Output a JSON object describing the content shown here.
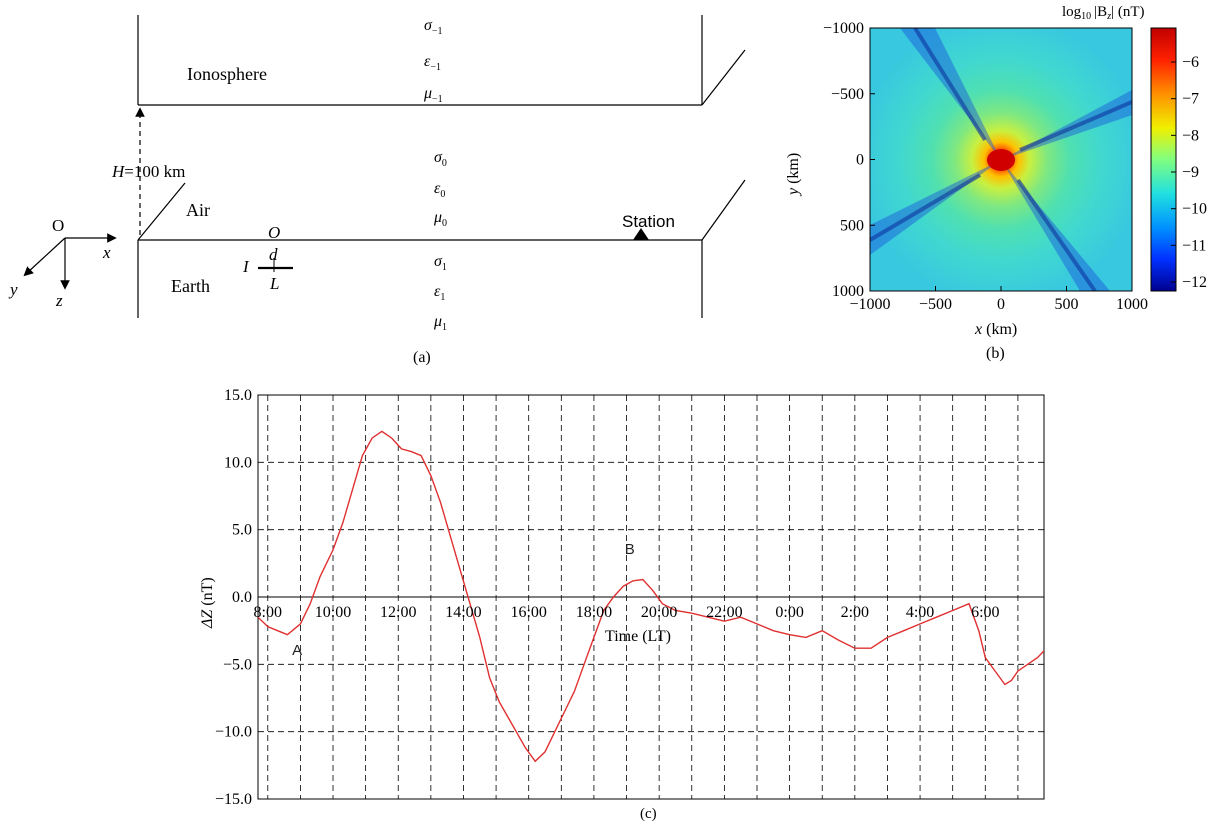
{
  "panel_a": {
    "caption": "(a)",
    "ionosphere_label": "Ionosphere",
    "air_label": "Air",
    "earth_label": "Earth",
    "station_label": "Station",
    "height_label_var": "H",
    "height_label_val": "=100 km",
    "origin_label": "O",
    "source_origin": "O",
    "source_d": "d",
    "source_I": "I",
    "source_L": "L",
    "axis_x": "x",
    "axis_y": "y",
    "axis_z": "z",
    "sigma": "σ",
    "epsilon": "ε",
    "mu": "μ",
    "sub_ion": "−1",
    "sub_air": "0",
    "sub_earth": "1"
  },
  "panel_b": {
    "caption": "(b)",
    "colorbar_title_prefix": "log",
    "colorbar_title_sub": "10",
    "colorbar_title_var": "|B",
    "colorbar_title_var_sub": "z",
    "colorbar_title_unit": "| (nT)",
    "xlabel_var": "x",
    "xlabel_unit": " (km)",
    "ylabel_var": "y",
    "ylabel_unit": " (km)",
    "x_ticks": [
      "−1000",
      "−500",
      "0",
      "500",
      "1000"
    ],
    "y_ticks": [
      "−1000",
      "−500",
      "0",
      "500",
      "1000"
    ],
    "colorbar_ticks": [
      "−6",
      "−7",
      "−8",
      "−9",
      "−10",
      "−11",
      "−12"
    ]
  },
  "chart_data": {
    "type": "line",
    "caption": "(c)",
    "xlabel": "Time (LT)",
    "ylabel_var": "ΔZ",
    "ylabel_unit": " (nT)",
    "ylim": [
      -15,
      15
    ],
    "xlim_hours": [
      7.7,
      31.8
    ],
    "y_ticks": [
      "15.0",
      "10.0",
      "5.0",
      "0.0",
      "−5.0",
      "−10.0",
      "−15.0"
    ],
    "x_tick_labels": [
      "8:00",
      "10:00",
      "12:00",
      "14:00",
      "16:00",
      "18:00",
      "20:00",
      "22:00",
      "0:00",
      "2:00",
      "4:00",
      "6:00"
    ],
    "grid": true,
    "line_color": "#e03030",
    "annotations": [
      {
        "text": "A",
        "x": 8.9,
        "y": -4.3
      },
      {
        "text": "B",
        "x": 19.1,
        "y": 3.2
      }
    ],
    "series": [
      {
        "x": [
          7.7,
          8.0,
          8.3,
          8.6,
          9.0,
          9.3,
          9.6,
          10.0,
          10.3,
          10.6,
          10.9,
          11.2,
          11.5,
          11.8,
          12.1,
          12.4,
          12.7,
          13.0,
          13.3,
          13.6,
          13.9,
          14.2,
          14.5,
          14.8,
          15.1,
          15.5,
          15.9,
          16.2,
          16.5,
          16.8,
          17.1,
          17.4,
          17.7,
          18.0,
          18.3,
          18.6,
          18.9,
          19.2,
          19.5,
          19.8,
          20.1,
          20.5,
          21.0,
          21.5,
          22.0,
          22.5,
          23.0,
          23.5,
          24.0,
          24.5,
          25.0,
          25.5,
          26.0,
          26.5,
          27.0,
          27.5,
          28.0,
          28.5,
          29.0,
          29.5,
          29.8,
          30.0,
          30.3,
          30.6,
          30.8,
          31.0,
          31.3,
          31.6,
          31.8
        ],
        "y": [
          -1.5,
          -2.2,
          -2.5,
          -2.8,
          -2.0,
          -0.5,
          1.5,
          3.5,
          5.5,
          8.0,
          10.5,
          11.8,
          12.3,
          11.8,
          11.0,
          10.8,
          10.5,
          9.0,
          7.0,
          4.5,
          2.0,
          -0.5,
          -3.0,
          -6.0,
          -7.8,
          -9.5,
          -11.2,
          -12.2,
          -11.5,
          -10.0,
          -8.5,
          -7.0,
          -5.0,
          -3.0,
          -1.0,
          0.0,
          0.8,
          1.2,
          1.3,
          0.5,
          -0.5,
          -1.0,
          -1.2,
          -1.5,
          -1.8,
          -1.5,
          -2.0,
          -2.5,
          -2.8,
          -3.0,
          -2.5,
          -3.2,
          -3.8,
          -3.8,
          -3.0,
          -2.5,
          -2.0,
          -1.5,
          -1.0,
          -0.5,
          -2.5,
          -4.5,
          -5.5,
          -6.5,
          -6.2,
          -5.5,
          -5.0,
          -4.5,
          -4.0
        ]
      }
    ]
  }
}
